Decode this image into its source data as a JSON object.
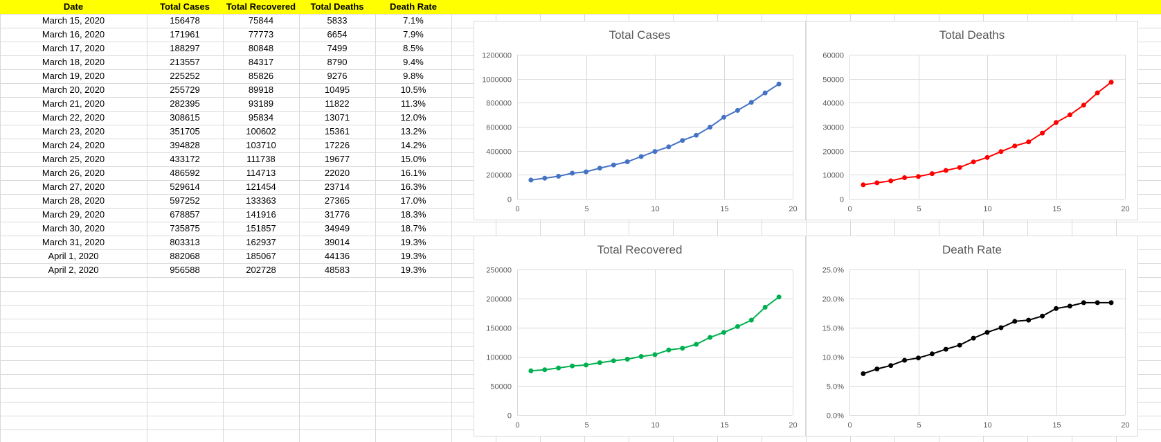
{
  "sheet": {
    "headers": [
      "Date",
      "Total Cases",
      "Total Recovered",
      "Total Deaths",
      "Death Rate"
    ],
    "rows": [
      [
        "March 15, 2020",
        "156478",
        "75844",
        "5833",
        "7.1%"
      ],
      [
        "March 16, 2020",
        "171961",
        "77773",
        "6654",
        "7.9%"
      ],
      [
        "March 17, 2020",
        "188297",
        "80848",
        "7499",
        "8.5%"
      ],
      [
        "March 18, 2020",
        "213557",
        "84317",
        "8790",
        "9.4%"
      ],
      [
        "March 19, 2020",
        "225252",
        "85826",
        "9276",
        "9.8%"
      ],
      [
        "March 20, 2020",
        "255729",
        "89918",
        "10495",
        "10.5%"
      ],
      [
        "March 21, 2020",
        "282395",
        "93189",
        "11822",
        "11.3%"
      ],
      [
        "March 22, 2020",
        "308615",
        "95834",
        "13071",
        "12.0%"
      ],
      [
        "March 23, 2020",
        "351705",
        "100602",
        "15361",
        "13.2%"
      ],
      [
        "March 24, 2020",
        "394828",
        "103710",
        "17226",
        "14.2%"
      ],
      [
        "March 25, 2020",
        "433172",
        "111738",
        "19677",
        "15.0%"
      ],
      [
        "March 26, 2020",
        "486592",
        "114713",
        "22020",
        "16.1%"
      ],
      [
        "March 27, 2020",
        "529614",
        "121454",
        "23714",
        "16.3%"
      ],
      [
        "March 28, 2020",
        "597252",
        "133363",
        "27365",
        "17.0%"
      ],
      [
        "March 29, 2020",
        "678857",
        "141916",
        "31776",
        "18.3%"
      ],
      [
        "March 30, 2020",
        "735875",
        "151857",
        "34949",
        "18.7%"
      ],
      [
        "March 31, 2020",
        "803313",
        "162937",
        "39014",
        "19.3%"
      ],
      [
        "April 1, 2020",
        "882068",
        "185067",
        "44136",
        "19.3%"
      ],
      [
        "April 2, 2020",
        "956588",
        "202728",
        "48583",
        "19.3%"
      ]
    ]
  },
  "colors": {
    "header_band": "#ffff00",
    "gridline": "#d9d9d9",
    "cases_series": "#4472c4",
    "deaths_series": "#ff0000",
    "recovered_series": "#00b050",
    "rate_series": "#000000",
    "axis_text": "#595959"
  },
  "chart_data": [
    {
      "id": "cases",
      "type": "scatter",
      "title": "Total Cases",
      "color": "#4472c4",
      "x": [
        1,
        2,
        3,
        4,
        5,
        6,
        7,
        8,
        9,
        10,
        11,
        12,
        13,
        14,
        15,
        16,
        17,
        18,
        19
      ],
      "y": [
        156478,
        171961,
        188297,
        213557,
        225252,
        255729,
        282395,
        308615,
        351705,
        394828,
        433172,
        486592,
        529614,
        597252,
        678857,
        735875,
        803313,
        882068,
        956588
      ],
      "xlim": [
        0,
        20
      ],
      "ylim": [
        0,
        1200000
      ],
      "xticks": [
        0,
        5,
        10,
        15,
        20
      ],
      "xtick_labels": [
        "0",
        "5",
        "10",
        "15",
        "20"
      ],
      "yticks": [
        0,
        200000,
        400000,
        600000,
        800000,
        1000000,
        1200000
      ],
      "ytick_labels": [
        "0",
        "200000",
        "400000",
        "600000",
        "800000",
        "1000000",
        "1200000"
      ],
      "grid": true,
      "legend": "none"
    },
    {
      "id": "deaths",
      "type": "scatter",
      "title": "Total Deaths",
      "color": "#ff0000",
      "x": [
        1,
        2,
        3,
        4,
        5,
        6,
        7,
        8,
        9,
        10,
        11,
        12,
        13,
        14,
        15,
        16,
        17,
        18,
        19
      ],
      "y": [
        5833,
        6654,
        7499,
        8790,
        9276,
        10495,
        11822,
        13071,
        15361,
        17226,
        19677,
        22020,
        23714,
        27365,
        31776,
        34949,
        39014,
        44136,
        48583
      ],
      "xlim": [
        0,
        20
      ],
      "ylim": [
        0,
        60000
      ],
      "xticks": [
        0,
        5,
        10,
        15,
        20
      ],
      "xtick_labels": [
        "0",
        "5",
        "10",
        "15",
        "20"
      ],
      "yticks": [
        0,
        10000,
        20000,
        30000,
        40000,
        50000,
        60000
      ],
      "ytick_labels": [
        "0",
        "10000",
        "20000",
        "30000",
        "40000",
        "50000",
        "60000"
      ],
      "grid": true,
      "legend": "none"
    },
    {
      "id": "recovered",
      "type": "scatter",
      "title": "Total Recovered",
      "color": "#00b050",
      "x": [
        1,
        2,
        3,
        4,
        5,
        6,
        7,
        8,
        9,
        10,
        11,
        12,
        13,
        14,
        15,
        16,
        17,
        18,
        19
      ],
      "y": [
        75844,
        77773,
        80848,
        84317,
        85826,
        89918,
        93189,
        95834,
        100602,
        103710,
        111738,
        114713,
        121454,
        133363,
        141916,
        151857,
        162937,
        185067,
        202728
      ],
      "xlim": [
        0,
        20
      ],
      "ylim": [
        0,
        250000
      ],
      "xticks": [
        0,
        5,
        10,
        15,
        20
      ],
      "xtick_labels": [
        "0",
        "5",
        "10",
        "15",
        "20"
      ],
      "yticks": [
        0,
        50000,
        100000,
        150000,
        200000,
        250000
      ],
      "ytick_labels": [
        "0",
        "50000",
        "100000",
        "150000",
        "200000",
        "250000"
      ],
      "grid": true,
      "legend": "none"
    },
    {
      "id": "rate",
      "type": "scatter",
      "title": "Death Rate",
      "color": "#000000",
      "x": [
        1,
        2,
        3,
        4,
        5,
        6,
        7,
        8,
        9,
        10,
        11,
        12,
        13,
        14,
        15,
        16,
        17,
        18,
        19
      ],
      "y": [
        7.1,
        7.9,
        8.5,
        9.4,
        9.8,
        10.5,
        11.3,
        12.0,
        13.2,
        14.2,
        15.0,
        16.1,
        16.3,
        17.0,
        18.3,
        18.7,
        19.3,
        19.3,
        19.3
      ],
      "xlim": [
        0,
        20
      ],
      "ylim": [
        0,
        25
      ],
      "xticks": [
        0,
        5,
        10,
        15,
        20
      ],
      "xtick_labels": [
        "0",
        "5",
        "10",
        "15",
        "20"
      ],
      "yticks": [
        0,
        5,
        10,
        15,
        20,
        25
      ],
      "ytick_labels": [
        "0.0%",
        "5.0%",
        "10.0%",
        "15.0%",
        "20.0%",
        "25.0%"
      ],
      "grid": true,
      "legend": "none"
    }
  ]
}
